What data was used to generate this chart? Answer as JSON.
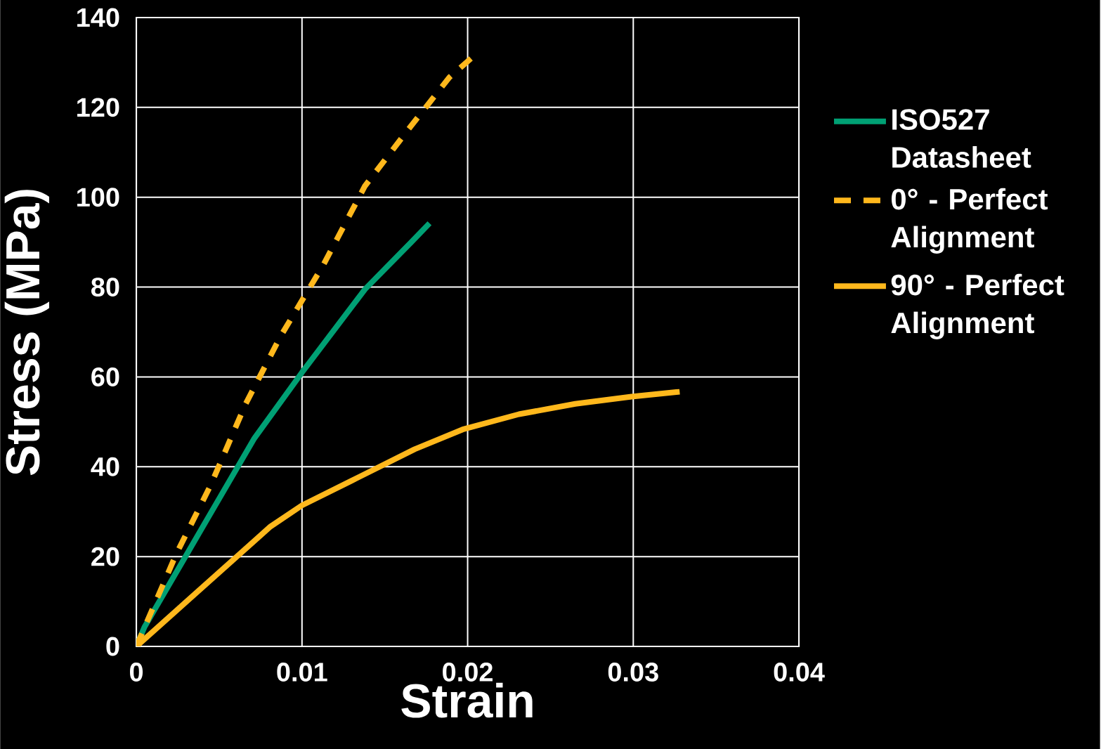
{
  "chart_data": {
    "type": "line",
    "xlabel": "Strain",
    "ylabel": "Stress (MPa)",
    "xlim": [
      0,
      0.04
    ],
    "ylim": [
      0,
      140
    ],
    "xticks": [
      0,
      0.01,
      0.02,
      0.03,
      0.04
    ],
    "yticks": [
      0,
      20,
      40,
      60,
      80,
      100,
      120,
      140
    ],
    "grid": true,
    "legend": "right",
    "series": [
      {
        "name": "ISO527 Datasheet",
        "color": "#00a074",
        "line_style": "solid",
        "x": [
          0,
          0.0005,
          0.0071,
          0.01,
          0.0138,
          0.0166,
          0.0177
        ],
        "values": [
          0,
          4.4,
          46.2,
          61,
          79.5,
          90,
          94.2
        ]
      },
      {
        "name": "0° - Perfect Alignment",
        "color": "#ffb81c",
        "line_style": "dashed",
        "x": [
          0,
          0.0024,
          0.0045,
          0.0066,
          0.0087,
          0.0113,
          0.0138,
          0.0164,
          0.0189,
          0.0203
        ],
        "values": [
          0,
          20.5,
          36,
          54,
          69,
          85,
          102.5,
          115,
          126.7,
          131.2
        ]
      },
      {
        "name": "90° - Perfect Alignment",
        "color": "#ffb81c",
        "line_style": "solid",
        "x": [
          0,
          0.0081,
          0.01,
          0.013,
          0.0168,
          0.0197,
          0.0231,
          0.0265,
          0.0299,
          0.0328
        ],
        "values": [
          0,
          26.7,
          31.4,
          36.9,
          43.9,
          48.3,
          51.7,
          54,
          55.6,
          56.7
        ]
      }
    ]
  }
}
